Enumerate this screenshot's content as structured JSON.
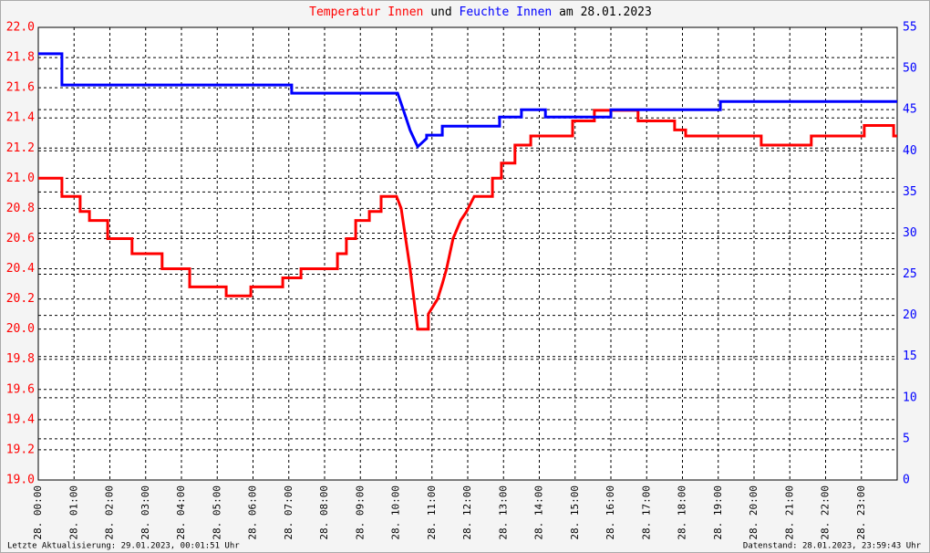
{
  "chart_data": {
    "type": "line",
    "title_joiner": "und",
    "title_date": "am 28.01.2023",
    "xlim": [
      0,
      24
    ],
    "xticks": [
      {
        "value": 0,
        "label": "28. 00:00"
      },
      {
        "value": 1,
        "label": "28. 01:00"
      },
      {
        "value": 2,
        "label": "28. 02:00"
      },
      {
        "value": 3,
        "label": "28. 03:00"
      },
      {
        "value": 4,
        "label": "28. 04:00"
      },
      {
        "value": 5,
        "label": "28. 05:00"
      },
      {
        "value": 6,
        "label": "28. 06:00"
      },
      {
        "value": 7,
        "label": "28. 07:00"
      },
      {
        "value": 8,
        "label": "28. 08:00"
      },
      {
        "value": 9,
        "label": "28. 09:00"
      },
      {
        "value": 10,
        "label": "28. 10:00"
      },
      {
        "value": 11,
        "label": "28. 11:00"
      },
      {
        "value": 12,
        "label": "28. 12:00"
      },
      {
        "value": 13,
        "label": "28. 13:00"
      },
      {
        "value": 14,
        "label": "28. 14:00"
      },
      {
        "value": 15,
        "label": "28. 15:00"
      },
      {
        "value": 16,
        "label": "28. 16:00"
      },
      {
        "value": 17,
        "label": "28. 17:00"
      },
      {
        "value": 18,
        "label": "28. 18:00"
      },
      {
        "value": 19,
        "label": "28. 19:00"
      },
      {
        "value": 20,
        "label": "28. 20:00"
      },
      {
        "value": 21,
        "label": "28. 21:00"
      },
      {
        "value": 22,
        "label": "28. 22:00"
      },
      {
        "value": 23,
        "label": "28. 23:00"
      }
    ],
    "ylim": [
      19,
      22
    ],
    "yticks": [
      {
        "value": 19,
        "label": "19.0"
      },
      19.2,
      19.4,
      19.6,
      19.8,
      {
        "value": 20,
        "label": "20.0"
      },
      20.2,
      20.4,
      20.6,
      20.8,
      {
        "value": 21,
        "label": "21.0"
      },
      21.2,
      21.4,
      21.6,
      21.8,
      {
        "value": 22,
        "label": "22.0"
      }
    ],
    "y2lim": [
      0,
      55
    ],
    "y2ticks": [
      0,
      5,
      10,
      15,
      20,
      25,
      30,
      35,
      40,
      45,
      50,
      55
    ],
    "grid": true,
    "series": [
      {
        "name": "Temperatur Innen",
        "color": "#ff0000",
        "x": [
          0,
          0.66,
          0.66,
          1.17,
          1.17,
          1.43,
          1.43,
          1.94,
          1.94,
          2.62,
          2.62,
          3.46,
          3.46,
          4.23,
          4.23,
          5.25,
          5.25,
          5.94,
          5.94,
          6.83,
          6.83,
          7.34,
          7.34,
          8.36,
          8.36,
          8.61,
          8.61,
          8.87,
          8.87,
          9.25,
          9.25,
          9.58,
          9.58,
          10.01,
          10.14,
          10.39,
          10.6,
          10.9,
          10.9,
          11.16,
          11.29,
          11.41,
          11.59,
          11.8,
          11.97,
          12.18,
          12.69,
          12.69,
          12.94,
          12.94,
          13.32,
          13.32,
          13.76,
          13.76,
          14.93,
          14.93,
          15.54,
          15.54,
          16.76,
          16.76,
          17.78,
          17.78,
          18.09,
          18.09,
          20.2,
          20.2,
          21.6,
          21.6,
          23.08,
          23.08,
          23.9,
          23.9,
          24
        ],
        "values": [
          21.0,
          21.0,
          20.88,
          20.88,
          20.78,
          20.78,
          20.72,
          20.72,
          20.6,
          20.6,
          20.5,
          20.5,
          20.4,
          20.4,
          20.28,
          20.28,
          20.22,
          20.22,
          20.28,
          20.28,
          20.34,
          20.34,
          20.4,
          20.4,
          20.5,
          20.5,
          20.6,
          20.6,
          20.72,
          20.72,
          20.78,
          20.78,
          20.88,
          20.88,
          20.8,
          20.4,
          20.0,
          20.0,
          20.1,
          20.2,
          20.3,
          20.4,
          20.6,
          20.72,
          20.78,
          20.88,
          20.88,
          21.0,
          21.0,
          21.1,
          21.1,
          21.22,
          21.22,
          21.28,
          21.28,
          21.38,
          21.38,
          21.45,
          21.45,
          21.38,
          21.38,
          21.32,
          21.32,
          21.28,
          21.28,
          21.22,
          21.22,
          21.28,
          21.28,
          21.35,
          21.35,
          21.28,
          21.28
        ]
      },
      {
        "name": "Feuchte Innen",
        "color": "#0000ff",
        "axis": "y2",
        "x": [
          0,
          0.66,
          0.66,
          7.08,
          7.08,
          10.04,
          10.2,
          10.39,
          10.6,
          10.85,
          10.85,
          11.29,
          11.29,
          12.89,
          12.89,
          13.5,
          13.5,
          14.17,
          14.17,
          16.0,
          16.0,
          19.06,
          19.06,
          24
        ],
        "values": [
          51.8,
          51.8,
          48,
          48,
          47,
          47,
          45,
          42.5,
          40.5,
          41.5,
          41.9,
          41.9,
          43,
          43,
          44.1,
          44.1,
          45,
          45,
          44.1,
          44.1,
          45,
          45,
          46,
          46
        ]
      }
    ]
  },
  "footer": {
    "updated": "Letzte Aktualisierung: 29.01.2023, 00:01:51 Uhr",
    "data_as_of": "Datenstand: 28.01.2023, 23:59:43 Uhr"
  }
}
